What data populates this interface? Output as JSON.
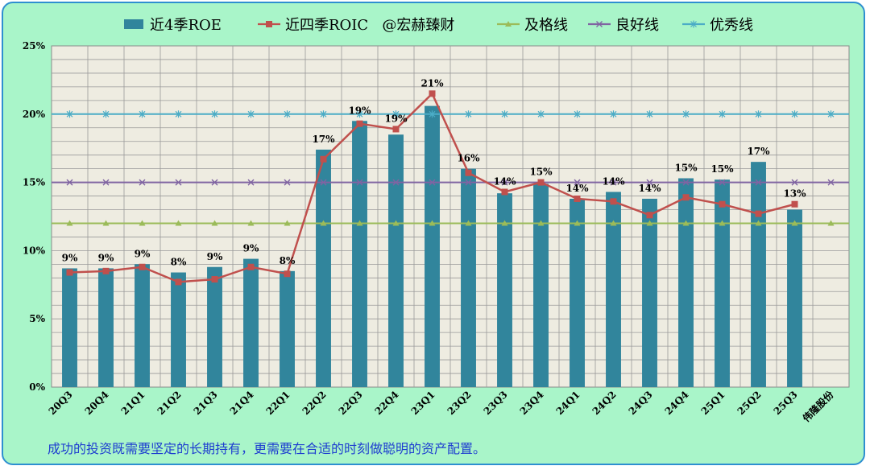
{
  "chart_data": {
    "type": "bar",
    "categories": [
      "20Q3",
      "20Q4",
      "21Q1",
      "21Q2",
      "21Q3",
      "21Q4",
      "22Q1",
      "22Q2",
      "22Q3",
      "22Q4",
      "23Q1",
      "23Q2",
      "23Q3",
      "23Q4",
      "24Q1",
      "24Q2",
      "24Q3",
      "24Q4",
      "25Q1",
      "25Q2",
      "25Q3",
      "伟隆股份"
    ],
    "series": [
      {
        "name": "近4季ROE",
        "kind": "bar",
        "color": "#31859c",
        "values": [
          8.7,
          8.7,
          9.0,
          8.4,
          8.8,
          9.4,
          8.5,
          17.4,
          19.5,
          18.5,
          20.6,
          16.0,
          14.2,
          14.9,
          13.8,
          14.3,
          13.8,
          15.3,
          15.2,
          16.5,
          13.0,
          null
        ],
        "labels": [
          "9%",
          "9%",
          "9%",
          "8%",
          "9%",
          "9%",
          "8%",
          "17%",
          "19%",
          "19%",
          "21%",
          "16%",
          "14%",
          "15%",
          "14%",
          "14%",
          "14%",
          "15%",
          "15%",
          "17%",
          "13%",
          ""
        ]
      },
      {
        "name": "近四季ROIC   @宏赫臻财",
        "kind": "line",
        "color": "#c0504d",
        "values": [
          8.4,
          8.5,
          8.8,
          7.7,
          7.9,
          8.8,
          8.3,
          16.7,
          19.3,
          18.9,
          21.5,
          15.7,
          14.3,
          15.0,
          13.8,
          13.6,
          12.6,
          13.9,
          13.4,
          12.7,
          13.4,
          null
        ]
      },
      {
        "name": "及格线",
        "kind": "ref",
        "color": "#9bbb59",
        "values": [
          12,
          12,
          12,
          12,
          12,
          12,
          12,
          12,
          12,
          12,
          12,
          12,
          12,
          12,
          12,
          12,
          12,
          12,
          12,
          12,
          12,
          12
        ]
      },
      {
        "name": "良好线",
        "kind": "ref",
        "color": "#8064a2",
        "values": [
          15,
          15,
          15,
          15,
          15,
          15,
          15,
          15,
          15,
          15,
          15,
          15,
          15,
          15,
          15,
          15,
          15,
          15,
          15,
          15,
          15,
          15
        ]
      },
      {
        "name": "优秀线",
        "kind": "ref",
        "color": "#4bacc6",
        "values": [
          20,
          20,
          20,
          20,
          20,
          20,
          20,
          20,
          20,
          20,
          20,
          20,
          20,
          20,
          20,
          20,
          20,
          20,
          20,
          20,
          20,
          20
        ]
      }
    ],
    "yticks": [
      "0%",
      "5%",
      "10%",
      "15%",
      "20%",
      "25%"
    ],
    "ylim": [
      0,
      25
    ],
    "grid": true,
    "legend": "top"
  },
  "footer": "成功的投资既需要坚定的长期持有，更需要在合适的时刻做聪明的资产配置。"
}
